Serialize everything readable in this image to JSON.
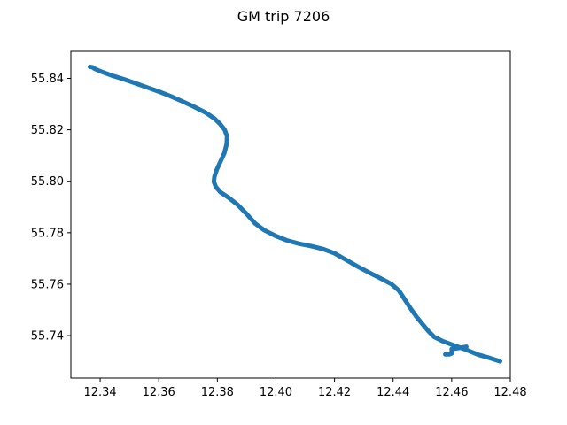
{
  "chart_data": {
    "type": "line",
    "title": "GM trip 7206",
    "xlabel": "",
    "ylabel": "",
    "xlim": [
      12.33,
      12.48
    ],
    "ylim": [
      55.7235,
      55.8505
    ],
    "xticks": [
      12.34,
      12.36,
      12.38,
      12.4,
      12.42,
      12.44,
      12.46,
      12.48
    ],
    "xtick_labels": [
      "12.34",
      "12.36",
      "12.38",
      "12.40",
      "12.42",
      "12.44",
      "12.46",
      "12.48"
    ],
    "yticks": [
      55.74,
      55.76,
      55.78,
      55.8,
      55.82,
      55.84
    ],
    "ytick_labels": [
      "55.74",
      "55.76",
      "55.78",
      "55.80",
      "55.82",
      "55.84"
    ],
    "grid": false,
    "series": [
      {
        "color": "#1f77b4",
        "points": [
          [
            12.3365,
            55.8445
          ],
          [
            12.3375,
            55.8443
          ],
          [
            12.338,
            55.8438
          ],
          [
            12.34,
            55.8428
          ],
          [
            12.344,
            55.8411
          ],
          [
            12.348,
            55.8397
          ],
          [
            12.352,
            55.8381
          ],
          [
            12.356,
            55.8365
          ],
          [
            12.36,
            55.8349
          ],
          [
            12.364,
            55.8331
          ],
          [
            12.368,
            55.8311
          ],
          [
            12.372,
            55.829
          ],
          [
            12.376,
            55.8267
          ],
          [
            12.379,
            55.8244
          ],
          [
            12.381,
            55.8222
          ],
          [
            12.3825,
            55.82
          ],
          [
            12.3833,
            55.8175
          ],
          [
            12.3832,
            55.8146
          ],
          [
            12.3824,
            55.811
          ],
          [
            12.381,
            55.8075
          ],
          [
            12.3798,
            55.8045
          ],
          [
            12.379,
            55.8018
          ],
          [
            12.3788,
            55.7998
          ],
          [
            12.3795,
            55.7978
          ],
          [
            12.381,
            55.7958
          ],
          [
            12.384,
            55.7935
          ],
          [
            12.387,
            55.7908
          ],
          [
            12.39,
            55.7873
          ],
          [
            12.393,
            55.7835
          ],
          [
            12.396,
            55.781
          ],
          [
            12.4,
            55.7787
          ],
          [
            12.404,
            55.7769
          ],
          [
            12.408,
            55.7757
          ],
          [
            12.412,
            55.7748
          ],
          [
            12.416,
            55.7737
          ],
          [
            12.42,
            55.772
          ],
          [
            12.424,
            55.7694
          ],
          [
            12.428,
            55.7668
          ],
          [
            12.432,
            55.7644
          ],
          [
            12.436,
            55.7621
          ],
          [
            12.4395,
            55.76
          ],
          [
            12.442,
            55.7575
          ],
          [
            12.444,
            55.754
          ],
          [
            12.446,
            55.7505
          ],
          [
            12.448,
            55.7473
          ],
          [
            12.45,
            55.7445
          ],
          [
            12.452,
            55.7418
          ],
          [
            12.454,
            55.7395
          ],
          [
            12.457,
            55.7378
          ],
          [
            12.461,
            55.7361
          ],
          [
            12.465,
            55.7345
          ],
          [
            12.469,
            55.7326
          ],
          [
            12.473,
            55.7313
          ],
          [
            12.4765,
            55.73
          ]
        ]
      },
      {
        "color": "#1f77b4",
        "points": [
          [
            12.4578,
            55.7327
          ],
          [
            12.4592,
            55.7327
          ],
          [
            12.46,
            55.7331
          ],
          [
            12.46,
            55.7348
          ],
          [
            12.462,
            55.7351
          ],
          [
            12.465,
            55.7357
          ]
        ]
      }
    ]
  }
}
